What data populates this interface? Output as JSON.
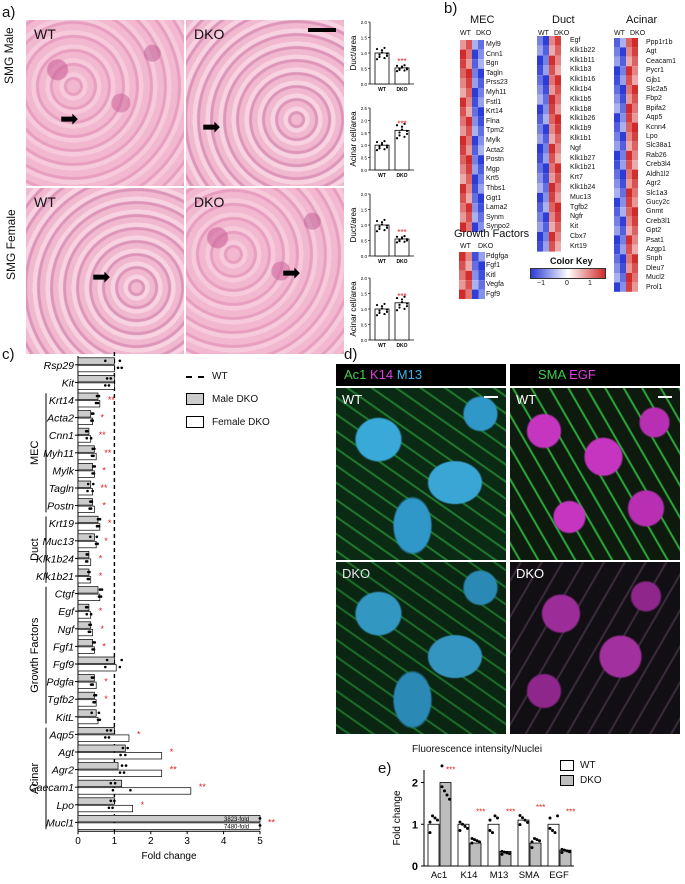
{
  "panel_labels": {
    "a": "a)",
    "b": "b)",
    "c": "c)",
    "d": "d)",
    "e": "e)"
  },
  "panel_a": {
    "row_labels": [
      "SMG Male",
      "SMG Female"
    ],
    "image_labels": {
      "wt": "WT",
      "dko": "DKO"
    },
    "charts": [
      {
        "ylabel": "Duct/area",
        "yticks": [
          "0.0",
          "0.5",
          "1.0",
          "1.5",
          "2.0"
        ],
        "ylim": [
          0,
          2
        ],
        "categories": [
          "WT",
          "DKO"
        ],
        "values": [
          1.0,
          0.52
        ],
        "sig": "***"
      },
      {
        "ylabel": "Acinar cell/area",
        "yticks": [
          "0.0",
          "0.5",
          "1.0",
          "1.5",
          "2.0",
          "2.5"
        ],
        "ylim": [
          0,
          2.5
        ],
        "categories": [
          "WT",
          "DKO"
        ],
        "values": [
          1.0,
          1.6
        ],
        "sig": "***"
      },
      {
        "ylabel": "Duct/area",
        "yticks": [
          "0.0",
          "0.5",
          "1.0",
          "1.5",
          "2.0"
        ],
        "ylim": [
          0,
          2
        ],
        "categories": [
          "WT",
          "DKO"
        ],
        "values": [
          1.0,
          0.55
        ],
        "sig": "***"
      },
      {
        "ylabel": "Acinar cell/area",
        "yticks": [
          "0.0",
          "0.5",
          "1.0",
          "1.5",
          "2.0"
        ],
        "ylim": [
          0,
          2
        ],
        "categories": [
          "WT",
          "DKO"
        ],
        "values": [
          1.0,
          1.2
        ],
        "sig": "***"
      }
    ]
  },
  "panel_b": {
    "groups": [
      {
        "title": "MEC",
        "col_labels": [
          "WT",
          "DKO"
        ],
        "genes": [
          "Myl9",
          "Cnn1",
          "Bgn",
          "Tagln",
          "Prss23",
          "Myh11",
          "Fstl1",
          "Krt14",
          "Flna",
          "Tpm2",
          "Mylk",
          "Acta2",
          "Postn",
          "Mgp",
          "Krt5",
          "Thbs1",
          "Ggt1",
          "Lama2",
          "Synm",
          "Synpo2"
        ]
      },
      {
        "title": "Duct",
        "col_labels": [
          "WT",
          "DKO"
        ],
        "genes": [
          "Egf",
          "Klk1b22",
          "Klk1b11",
          "Klk1b3",
          "Klk1b16",
          "Klk1b4",
          "Klk1b5",
          "Klk1b8",
          "Klk1b26",
          "Klk1b9",
          "Klk1b1",
          "Ngf",
          "Klk1b27",
          "Klk1b21",
          "Krt7",
          "Klk1b24",
          "Muc13",
          "Tgfb2",
          "Ngfr",
          "Kit",
          "Cbx7",
          "Krt19"
        ]
      },
      {
        "title": "Acinar",
        "col_labels": [
          "WT",
          "DKO"
        ],
        "genes": [
          "Ppp1r1b",
          "Agt",
          "Ceacam1",
          "Pycr1",
          "Gjb1",
          "Slc2a5",
          "Fbp2",
          "Bpifa2",
          "Aqp5",
          "Kcnn4",
          "Lpo",
          "Slc38a1",
          "Rab26",
          "Creb3l4",
          "Aldh1l2",
          "Agr2",
          "Slc1a3",
          "Gucy2c",
          "Gnmt",
          "Creb3l1",
          "Gpt2",
          "Psat1",
          "Azgp1",
          "Snph",
          "Dleu7",
          "Mucl2",
          "Prol1"
        ]
      },
      {
        "title": "Growth Factors",
        "col_labels": [
          "WT",
          "DKO"
        ],
        "genes": [
          "Pdgfga",
          "Fgf1",
          "Kitl",
          "Vegfa",
          "Fgf9"
        ]
      }
    ],
    "color_key": {
      "title": "Color Key",
      "ticks": [
        "−1",
        "0",
        "1"
      ],
      "low": "#2b3bd6",
      "mid": "#ffffff",
      "high": "#d12a2a"
    }
  },
  "panel_c": {
    "legend": [
      {
        "label": "WT",
        "style": "dashed"
      },
      {
        "label": "Male DKO",
        "fill": "#cccccc"
      },
      {
        "label": "Female DKO",
        "fill": "#ffffff"
      }
    ],
    "xlabel": "Fold change",
    "xticks": [
      "0",
      "1",
      "2",
      "3",
      "4",
      "5"
    ],
    "groups": [
      {
        "label": "MEC",
        "genes": [
          "Krt14",
          "Acta2",
          "Cnn1",
          "Myh11",
          "Mylk",
          "Tagln",
          "Postn"
        ]
      },
      {
        "label": "Duct",
        "genes": [
          "Krt19",
          "Muc13",
          "Klk1b24",
          "Klk1b21"
        ]
      },
      {
        "label": "Growth Factors",
        "genes": [
          "Ctgf",
          "Egf",
          "Ngf",
          "Fgf1",
          "Fgf9",
          "Pdgfa",
          "Tgfb2",
          "KitL"
        ]
      },
      {
        "label": "Acinar",
        "genes": [
          "Aqp5",
          "Agt",
          "Agr2",
          "Caecam1",
          "Lpo",
          "Mucl1"
        ]
      }
    ],
    "annotations": [
      "3823-fold",
      "7480-fold"
    ]
  },
  "chart_data": {
    "type": "bar",
    "orientation": "horizontal",
    "xlabel": "Fold change",
    "xlim": [
      0,
      5
    ],
    "reference_line": 1,
    "categories": [
      "Rsp29",
      "Kit",
      "Krt14",
      "Acta2",
      "Cnn1",
      "Myh11",
      "Mylk",
      "Tagln",
      "Postn",
      "Krt19",
      "Muc13",
      "Klk1b24",
      "Klk1b21",
      "Ctgf",
      "Egf",
      "Ngf",
      "Fgf1",
      "Fgf9",
      "Pdgfa",
      "Tgfb2",
      "KitL",
      "Aqp5",
      "Agt",
      "Agr2",
      "Caecam1",
      "Lpo",
      "Mucl1"
    ],
    "series": [
      {
        "name": "Male DKO",
        "values": [
          1.0,
          1.0,
          0.55,
          0.35,
          0.3,
          0.45,
          0.4,
          0.35,
          0.4,
          0.55,
          0.45,
          0.3,
          0.3,
          0.55,
          0.3,
          0.35,
          0.4,
          1.0,
          0.45,
          0.45,
          0.5,
          1.0,
          1.3,
          1.1,
          1.2,
          1.0,
          5.0
        ]
      },
      {
        "name": "Female DKO",
        "values": [
          1.0,
          1.0,
          0.6,
          0.4,
          0.35,
          0.5,
          0.45,
          0.4,
          0.45,
          0.6,
          0.5,
          0.35,
          0.35,
          0.6,
          0.35,
          0.4,
          0.45,
          1.05,
          0.5,
          0.5,
          0.55,
          1.4,
          2.3,
          2.3,
          3.1,
          1.5,
          5.0
        ]
      }
    ],
    "sig": [
      "",
      "",
      "**",
      "*",
      "**",
      "**",
      "*",
      "**",
      "*",
      "*",
      "*",
      "*",
      "*",
      "",
      "*",
      "*",
      "*",
      "",
      "*",
      "*",
      "",
      "*",
      "*",
      "**",
      "**",
      "*",
      "**"
    ]
  },
  "panel_d": {
    "left_header": [
      {
        "text": "Ac1",
        "color": "#3ed14a"
      },
      {
        "text": "K14",
        "color": "#e03ee0"
      },
      {
        "text": "M13",
        "color": "#37b6ee"
      }
    ],
    "right_header": [
      {
        "text": "SMA",
        "color": "#3ed14a"
      },
      {
        "text": "EGF",
        "color": "#e03ee0"
      }
    ],
    "image_labels": [
      "WT",
      "WT",
      "DKO",
      "DKO"
    ]
  },
  "panel_e": {
    "title": "Fluorescence intensity/Nuclei",
    "ylabel": "Fold change",
    "yticks": [
      "0",
      "1",
      "2"
    ],
    "ylim": [
      0,
      2.3
    ],
    "categories": [
      "Ac1",
      "K14",
      "M13",
      "SMA",
      "EGF"
    ],
    "series": [
      {
        "name": "WT",
        "values": [
          1.0,
          1.0,
          1.0,
          1.1,
          1.0
        ],
        "fill": "#ffffff"
      },
      {
        "name": "DKO",
        "values": [
          2.0,
          0.55,
          0.35,
          0.55,
          0.38
        ],
        "fill": "#bdbdbd"
      }
    ],
    "sig": "***"
  }
}
